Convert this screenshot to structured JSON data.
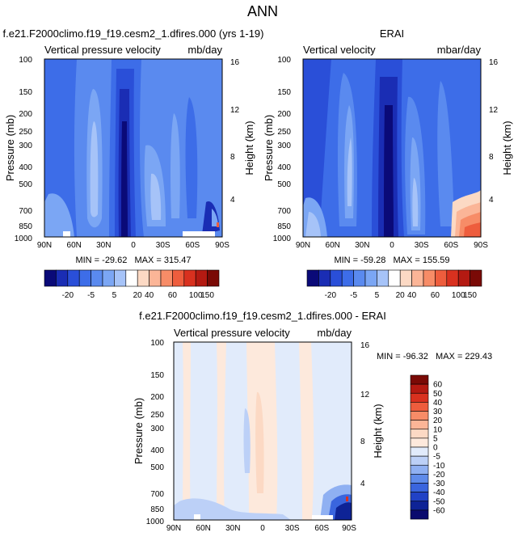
{
  "figure_title": "ANN",
  "chart_data": [
    {
      "type": "heatmap",
      "panel": "model",
      "title": "f.e21.F2000climo.f19_f19.cesm2_1.dfires.000 (yrs 1-19)",
      "left_label": "Vertical pressure velocity",
      "units": "mb/day",
      "ylabel": "Pressure (mb)",
      "y2label": "Height (km)",
      "xticks": [
        "90N",
        "60N",
        "30N",
        "0",
        "30S",
        "60S",
        "90S"
      ],
      "yticks": [
        "100",
        "150",
        "200",
        "250",
        "300",
        "400",
        "500",
        "700",
        "850",
        "1000"
      ],
      "y2ticks": [
        "16",
        "12",
        "8",
        "4"
      ],
      "min_max": "MIN = -29.62   MAX = 315.47",
      "colorbar": [
        "-20",
        "-5",
        "5",
        "20",
        "40",
        "60",
        "100",
        "150"
      ]
    },
    {
      "type": "heatmap",
      "panel": "obs",
      "title": "ERAI",
      "left_label": "Vertical velocity",
      "units": "mbar/day",
      "ylabel": "Pressure (mb)",
      "y2label": "Height (km)",
      "xticks": [
        "90N",
        "60N",
        "30N",
        "0",
        "30S",
        "60S",
        "90S"
      ],
      "yticks": [
        "100",
        "150",
        "200",
        "250",
        "300",
        "400",
        "500",
        "700",
        "850",
        "1000"
      ],
      "y2ticks": [
        "16",
        "12",
        "8",
        "4"
      ],
      "min_max": "MIN = -59.28   MAX = 155.59",
      "colorbar": [
        "-20",
        "-5",
        "5",
        "20",
        "40",
        "60",
        "100",
        "150"
      ]
    },
    {
      "type": "heatmap",
      "panel": "difference",
      "title": "f.e21.F2000climo.f19_f19.cesm2_1.dfires.000 - ERAI",
      "left_label": "Vertical pressure velocity",
      "units": "mb/day",
      "ylabel": "Pressure (mb)",
      "y2label": "Height (km)",
      "xticks": [
        "90N",
        "60N",
        "30N",
        "0",
        "30S",
        "60S",
        "90S"
      ],
      "yticks": [
        "100",
        "150",
        "200",
        "250",
        "300",
        "400",
        "500",
        "700",
        "850",
        "1000"
      ],
      "y2ticks": [
        "16",
        "12",
        "8",
        "4"
      ],
      "min_max": "MIN = -96.32   MAX = 229.43",
      "colorbar": [
        "60",
        "50",
        "40",
        "30",
        "20",
        "10",
        "5",
        "0",
        "-5",
        "-10",
        "-20",
        "-30",
        "-40",
        "-50",
        "-60"
      ]
    }
  ],
  "colors": {
    "main_scale": [
      "#0a0a78",
      "#1a2db4",
      "#2a4fd8",
      "#3d6de8",
      "#5a8aef",
      "#7ba6f4",
      "#a6c3f8",
      "#ffffff",
      "#fcd9c4",
      "#fbb597",
      "#f78c67",
      "#ee5d3d",
      "#d9311f",
      "#b41a12",
      "#7a0a06"
    ],
    "diff_scale": [
      "#7a0a06",
      "#b41a12",
      "#d9311f",
      "#ee5d3d",
      "#f78c67",
      "#fbb597",
      "#fcd9c4",
      "#fde9dc",
      "#e1ebfb",
      "#bcd0f7",
      "#8fb0f2",
      "#5f8bea",
      "#3a65de",
      "#2142c6",
      "#0e2396",
      "#0a0a6e"
    ]
  }
}
